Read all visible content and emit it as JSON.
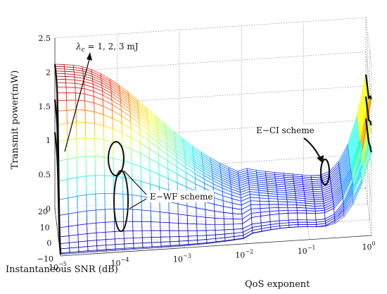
{
  "chart_data": {
    "type": "surface3d",
    "title": "",
    "zlabel": "Transmit power(mW)",
    "ylabel": "Instantaneous SNR (dB)",
    "xlabel": "QoS exponent",
    "zlim": [
      0,
      2.5
    ],
    "z_ticks": [
      "0",
      "0.5",
      "1",
      "1.5",
      "2",
      "2.5"
    ],
    "ylim": [
      -10,
      20
    ],
    "y_ticks": [
      "−10",
      "0",
      "10",
      "20"
    ],
    "xlim": [
      -5,
      0
    ],
    "x_tick_labels": [
      "10",
      "10",
      "10",
      "10",
      "10",
      "10"
    ],
    "x_tick_exponents": [
      "−5",
      "−4",
      "−3",
      "−2",
      "−1",
      "0"
    ],
    "grid": true,
    "annotations": [
      {
        "name": "lambda",
        "base": "λ",
        "sub": "c",
        "text": " = 1, 2, 3 mJ"
      },
      {
        "name": "ewf",
        "text": "E−WF scheme"
      },
      {
        "name": "eci",
        "text": "E−CI scheme"
      }
    ],
    "surfaces": [
      {
        "name": "λc = 1 mJ",
        "max_power": 1.12,
        "eci_edge_max": 1.15
      },
      {
        "name": "λc = 2 mJ",
        "max_power": 1.6,
        "eci_edge_max": 1.55
      },
      {
        "name": "λc = 3 mJ",
        "max_power": 2.12,
        "eci_edge_max": 1.95
      }
    ]
  }
}
